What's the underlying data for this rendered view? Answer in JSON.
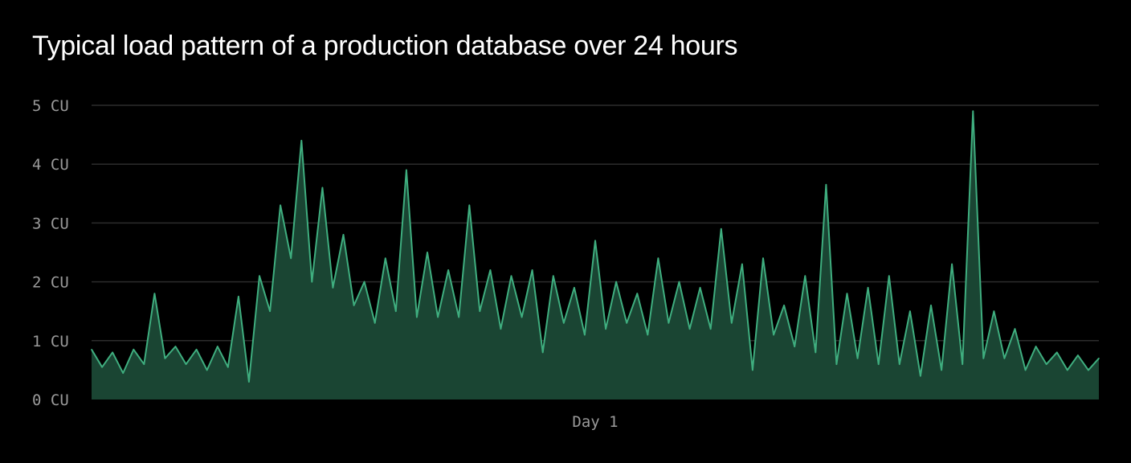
{
  "chart_data": {
    "type": "area",
    "title": "Typical load pattern of a production database over 24 hours",
    "xlabel": "Day 1",
    "ylabel": "",
    "y_unit": "CU",
    "ylim": [
      0,
      5
    ],
    "yticks": [
      0,
      1,
      2,
      3,
      4,
      5
    ],
    "ytick_labels": [
      "0 CU",
      "1 CU",
      "2 CU",
      "3 CU",
      "4 CU",
      "5 CU"
    ],
    "xlim": [
      0,
      24
    ],
    "grid": true,
    "legend": "none",
    "colors": {
      "line": "#3fae7f",
      "fill": "#1a4533",
      "grid": "#2c2c2c",
      "background": "#000000"
    },
    "series": [
      {
        "x": [
          0,
          0.25,
          0.5,
          0.75,
          1,
          1.25,
          1.5,
          1.75,
          2,
          2.25,
          2.5,
          2.75,
          3,
          3.25,
          3.5,
          3.75,
          4,
          4.25,
          4.5,
          4.75,
          5,
          5.25,
          5.5,
          5.75,
          6,
          6.25,
          6.5,
          6.75,
          7,
          7.25,
          7.5,
          7.75,
          8,
          8.25,
          8.5,
          8.75,
          9,
          9.25,
          9.5,
          9.75,
          10,
          10.25,
          10.5,
          10.75,
          11,
          11.25,
          11.5,
          11.75,
          12,
          12.25,
          12.5,
          12.75,
          13,
          13.25,
          13.5,
          13.75,
          14,
          14.25,
          14.5,
          14.75,
          15,
          15.25,
          15.5,
          15.75,
          16,
          16.25,
          16.5,
          16.75,
          17,
          17.25,
          17.5,
          17.75,
          18,
          18.25,
          18.5,
          18.75,
          19,
          19.25,
          19.5,
          19.75,
          20,
          20.25,
          20.5,
          20.75,
          21,
          21.25,
          21.5,
          21.75,
          22,
          22.25,
          22.5,
          22.75,
          23,
          23.25,
          23.5,
          23.75,
          24
        ],
        "values": [
          0.85,
          0.55,
          0.8,
          0.45,
          0.85,
          0.6,
          1.8,
          0.7,
          0.9,
          0.6,
          0.85,
          0.5,
          0.9,
          0.55,
          1.75,
          0.3,
          2.1,
          1.5,
          3.3,
          2.4,
          4.4,
          2.0,
          3.6,
          1.9,
          2.8,
          1.6,
          2.0,
          1.3,
          2.4,
          1.5,
          3.9,
          1.4,
          2.5,
          1.4,
          2.2,
          1.4,
          3.3,
          1.5,
          2.2,
          1.2,
          2.1,
          1.4,
          2.2,
          0.8,
          2.1,
          1.3,
          1.9,
          1.1,
          2.7,
          1.2,
          2.0,
          1.3,
          1.8,
          1.1,
          2.4,
          1.3,
          2.0,
          1.2,
          1.9,
          1.2,
          2.9,
          1.3,
          2.3,
          0.5,
          2.4,
          1.1,
          1.6,
          0.9,
          2.1,
          0.8,
          3.65,
          0.6,
          1.8,
          0.7,
          1.9,
          0.6,
          2.1,
          0.6,
          1.5,
          0.4,
          1.6,
          0.5,
          2.3,
          0.6,
          4.9,
          0.7,
          1.5,
          0.7,
          1.2,
          0.5,
          0.9,
          0.6,
          0.8,
          0.5,
          0.75,
          0.5,
          0.7
        ]
      }
    ]
  }
}
